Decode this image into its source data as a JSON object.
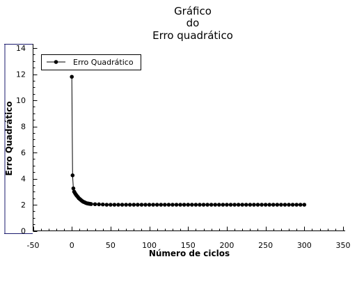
{
  "chart_data": {
    "type": "line",
    "title_lines": [
      "Gráfico",
      "do",
      "Erro quadrático"
    ],
    "xlabel": "Número de ciclos",
    "ylabel": "Erro Quadrático",
    "xlim": [
      -50,
      350
    ],
    "ylim": [
      0,
      14
    ],
    "x_ticks": [
      -50,
      0,
      50,
      100,
      150,
      200,
      250,
      300,
      350
    ],
    "x_tick_labels": [
      "-50",
      "0",
      "50",
      "100",
      "150",
      "200",
      "250",
      "300",
      "350"
    ],
    "y_ticks": [
      0,
      2,
      4,
      6,
      8,
      10,
      12,
      14
    ],
    "y_tick_labels": [
      "0",
      "2",
      "4",
      "6",
      "8",
      "10",
      "12",
      "14"
    ],
    "grid": false,
    "legend_position": "top-left",
    "series": [
      {
        "name": "Erro Quadrático",
        "color": "#000000",
        "x": [
          0,
          1,
          2,
          3,
          4,
          5,
          6,
          7,
          8,
          9,
          10,
          11,
          12,
          13,
          14,
          15,
          16,
          17,
          18,
          19,
          20,
          21,
          22,
          23,
          24,
          25,
          30,
          35,
          40,
          45,
          50,
          55,
          60,
          65,
          70,
          75,
          80,
          85,
          90,
          95,
          100,
          105,
          110,
          115,
          120,
          125,
          130,
          135,
          140,
          145,
          150,
          155,
          160,
          165,
          170,
          175,
          180,
          185,
          190,
          195,
          200,
          205,
          210,
          215,
          220,
          225,
          230,
          235,
          240,
          245,
          250,
          255,
          260,
          265,
          270,
          275,
          280,
          285,
          290,
          295,
          300
        ],
        "y": [
          11.8,
          4.25,
          3.25,
          3.0,
          2.9,
          2.8,
          2.72,
          2.65,
          2.58,
          2.5,
          2.45,
          2.4,
          2.35,
          2.3,
          2.26,
          2.22,
          2.2,
          2.17,
          2.14,
          2.12,
          2.1,
          2.09,
          2.08,
          2.07,
          2.06,
          2.05,
          2.04,
          2.03,
          2.02,
          2.0,
          2.0,
          2.0,
          2.0,
          2.0,
          2.0,
          2.0,
          2.0,
          2.0,
          2.0,
          2.0,
          2.0,
          2.0,
          2.0,
          2.0,
          2.0,
          2.0,
          2.0,
          2.0,
          2.0,
          2.0,
          2.0,
          2.0,
          2.0,
          2.0,
          2.0,
          2.0,
          2.0,
          2.0,
          2.0,
          2.0,
          2.0,
          2.0,
          2.0,
          2.0,
          2.0,
          2.0,
          2.0,
          2.0,
          2.0,
          2.0,
          2.0,
          2.0,
          2.0,
          2.0,
          2.0,
          2.0,
          2.0,
          2.0,
          2.0,
          2.0,
          2.0
        ]
      }
    ]
  }
}
